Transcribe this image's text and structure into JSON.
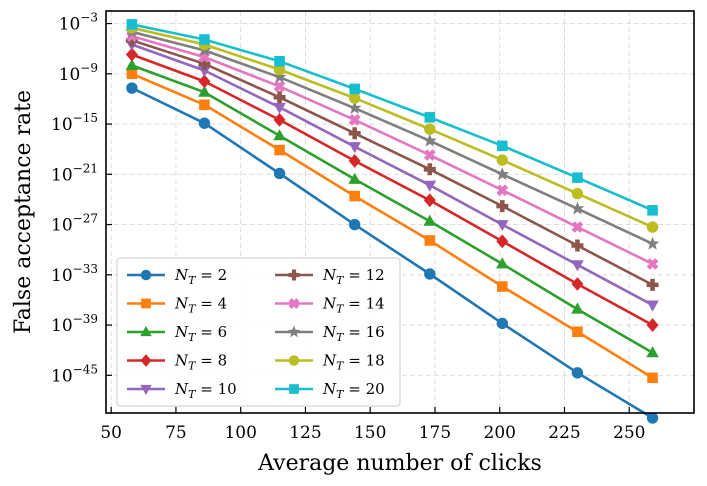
{
  "chart_data": {
    "type": "line",
    "xlabel": "Average number of clicks",
    "ylabel": "False acceptance rate",
    "x": [
      58,
      86,
      115,
      144,
      173,
      201,
      230,
      259
    ],
    "xlim": [
      48,
      275
    ],
    "ylim_log10": [
      -49.5,
      -1.5
    ],
    "y_scale": "log",
    "xticks": [
      50,
      75,
      100,
      125,
      150,
      175,
      200,
      225,
      250
    ],
    "yticks_exp": [
      -3,
      -9,
      -15,
      -21,
      -27,
      -33,
      -39,
      -45
    ],
    "grid": true,
    "legend_position": "lower-left",
    "legend_columns": 2,
    "series": [
      {
        "name": "N_T = 2",
        "label_sub": "T",
        "label_num": "2",
        "color": "#1f77b4",
        "marker": "circle",
        "log10_values": [
          -10.7,
          -14.9,
          -20.9,
          -27.0,
          -32.9,
          -38.8,
          -44.7,
          -50.1
        ]
      },
      {
        "name": "N_T = 4",
        "label_sub": "T",
        "label_num": "4",
        "color": "#ff7f0e",
        "marker": "square",
        "log10_values": [
          -9.0,
          -12.7,
          -18.1,
          -23.6,
          -28.9,
          -34.4,
          -39.8,
          -45.3
        ]
      },
      {
        "name": "N_T = 6",
        "label_sub": "T",
        "label_num": "6",
        "color": "#2ca02c",
        "marker": "triangle-up",
        "log10_values": [
          -8.0,
          -11.2,
          -16.4,
          -21.6,
          -26.6,
          -31.7,
          -37.1,
          -42.3
        ]
      },
      {
        "name": "N_T = 8",
        "label_sub": "T",
        "label_num": "8",
        "color": "#d62728",
        "marker": "diamond",
        "log10_values": [
          -6.7,
          -9.9,
          -14.5,
          -19.4,
          -24.1,
          -29.0,
          -34.1,
          -39.0
        ]
      },
      {
        "name": "N_T = 10",
        "label_sub": "T",
        "label_num": "10",
        "color": "#9467bd",
        "marker": "triangle-down",
        "log10_values": [
          -5.5,
          -8.6,
          -13.0,
          -17.7,
          -22.3,
          -27.0,
          -31.8,
          -36.6
        ]
      },
      {
        "name": "N_T = 12",
        "label_sub": "T",
        "label_num": "12",
        "color": "#8c564b",
        "marker": "plus",
        "log10_values": [
          -5.0,
          -7.8,
          -11.8,
          -16.1,
          -20.4,
          -24.8,
          -29.5,
          -34.2
        ]
      },
      {
        "name": "N_T = 14",
        "label_sub": "T",
        "label_num": "14",
        "color": "#e377c2",
        "marker": "x",
        "log10_values": [
          -4.5,
          -7.0,
          -10.5,
          -14.5,
          -18.7,
          -22.9,
          -27.3,
          -31.7
        ]
      },
      {
        "name": "N_T = 16",
        "label_sub": "T",
        "label_num": "16",
        "color": "#7f7f7f",
        "marker": "star",
        "log10_values": [
          -4.0,
          -6.2,
          -9.4,
          -13.1,
          -17.0,
          -21.0,
          -25.1,
          -29.3
        ]
      },
      {
        "name": "N_T = 18",
        "label_sub": "T",
        "label_num": "18",
        "color": "#bcbd22",
        "marker": "circle",
        "log10_values": [
          -3.5,
          -5.5,
          -8.5,
          -11.9,
          -15.6,
          -19.3,
          -23.3,
          -27.3
        ]
      },
      {
        "name": "N_T = 20",
        "label_sub": "T",
        "label_num": "20",
        "color": "#17becf",
        "marker": "square",
        "log10_values": [
          -3.1,
          -4.9,
          -7.5,
          -10.8,
          -14.2,
          -17.6,
          -21.4,
          -25.3
        ]
      }
    ]
  }
}
